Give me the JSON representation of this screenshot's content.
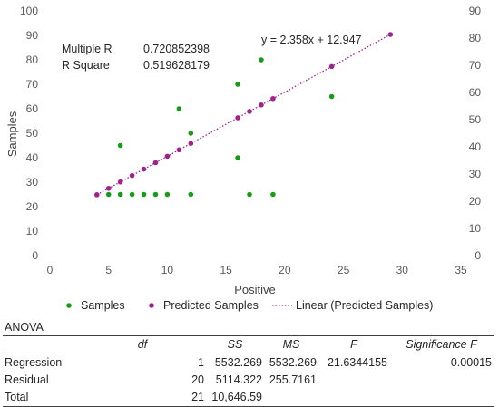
{
  "chart_data": {
    "type": "scatter",
    "xlabel": "Positive",
    "ylabel": "Samples",
    "xlim": [
      0,
      35
    ],
    "xticks": [
      0,
      5,
      10,
      15,
      20,
      25,
      30,
      35
    ],
    "ylim": [
      0,
      100
    ],
    "yticks": [
      0,
      10,
      20,
      30,
      40,
      50,
      60,
      70,
      80,
      90,
      100
    ],
    "y2lim": [
      0,
      90
    ],
    "y2ticks": [
      0,
      10,
      20,
      30,
      40,
      50,
      60,
      70,
      80,
      90
    ],
    "grid": false,
    "legend_position": "bottom",
    "equation": "y = 2.358x + 12.947",
    "stats": [
      {
        "label": "Multiple R",
        "value": "0.720852398"
      },
      {
        "label": "R Square",
        "value": "0.519628179"
      }
    ],
    "series": [
      {
        "name": "Samples",
        "axis": "left",
        "color": "#1a9a1a",
        "marker": "circle",
        "points": [
          [
            5,
            25
          ],
          [
            6,
            25
          ],
          [
            7,
            25
          ],
          [
            8,
            25
          ],
          [
            9,
            25
          ],
          [
            10,
            25
          ],
          [
            12,
            25
          ],
          [
            17,
            25
          ],
          [
            19,
            25
          ],
          [
            6,
            45
          ],
          [
            11,
            60
          ],
          [
            12,
            50
          ],
          [
            16,
            70
          ],
          [
            16,
            40
          ],
          [
            18,
            80
          ],
          [
            24,
            65
          ]
        ]
      },
      {
        "name": "Predicted Samples",
        "axis": "right",
        "color": "#a0238c",
        "marker": "circle",
        "points": [
          [
            4,
            22.38
          ],
          [
            5,
            24.74
          ],
          [
            6,
            27.09
          ],
          [
            7,
            29.45
          ],
          [
            8,
            31.81
          ],
          [
            9,
            34.17
          ],
          [
            10,
            36.53
          ],
          [
            11,
            38.89
          ],
          [
            12,
            41.24
          ],
          [
            16,
            50.68
          ],
          [
            17,
            53.03
          ],
          [
            18,
            55.39
          ],
          [
            19,
            57.75
          ],
          [
            24,
            69.54
          ],
          [
            29,
            81.33
          ]
        ]
      }
    ],
    "trendline": {
      "name": "Linear (Predicted Samples)",
      "axis": "right",
      "color": "#a0238c",
      "style": "dotted",
      "slope": 2.358,
      "intercept": 12.947,
      "x_range": [
        4,
        29
      ]
    }
  },
  "anova": {
    "title": "ANOVA",
    "headers": [
      "",
      "df",
      "SS",
      "MS",
      "F",
      "Significance F"
    ],
    "rows": [
      [
        "Regression",
        "1",
        "5532.269",
        "5532.269",
        "21.6344155",
        "0.00015"
      ],
      [
        "Residual",
        "20",
        "5114.322",
        "255.7161",
        "",
        ""
      ],
      [
        "Total",
        "21",
        "10,646.59",
        "",
        "",
        ""
      ]
    ]
  }
}
